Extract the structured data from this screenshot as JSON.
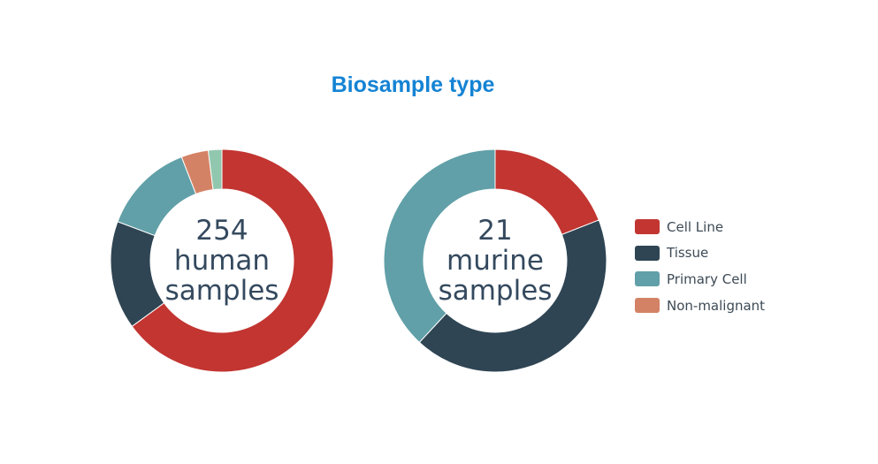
{
  "title": "Biosample type",
  "colors": {
    "cell_line": "#c23531",
    "tissue": "#2f4554",
    "primary_cell": "#61a0a8",
    "non_malignant": "#d48265",
    "other": "#91c7ae",
    "title": "#1483d4",
    "center_text": "#34495e"
  },
  "legend": [
    {
      "label": "Cell Line",
      "color": "#c23531"
    },
    {
      "label": "Tissue",
      "color": "#2f4554"
    },
    {
      "label": "Primary Cell",
      "color": "#61a0a8"
    },
    {
      "label": "Non-malignant",
      "color": "#d48265"
    }
  ],
  "centers": {
    "human": {
      "count": "254",
      "line1": "human",
      "line2": "samples"
    },
    "murine": {
      "count": "21",
      "line1": "murine",
      "line2": "samples"
    }
  },
  "chart_data": [
    {
      "type": "pie",
      "title": "",
      "center_label": "254 human samples",
      "categories": [
        "Cell Line",
        "Tissue",
        "Primary Cell",
        "Non-malignant",
        ""
      ],
      "values": [
        165,
        40,
        34,
        10,
        5
      ],
      "colors": [
        "#c23531",
        "#2f4554",
        "#61a0a8",
        "#d48265",
        "#91c7ae"
      ]
    },
    {
      "type": "pie",
      "title": "",
      "center_label": "21 murine samples",
      "categories": [
        "Cell Line",
        "Tissue",
        "Primary Cell"
      ],
      "values": [
        4,
        9,
        8
      ],
      "colors": [
        "#c23531",
        "#2f4554",
        "#61a0a8"
      ]
    }
  ]
}
